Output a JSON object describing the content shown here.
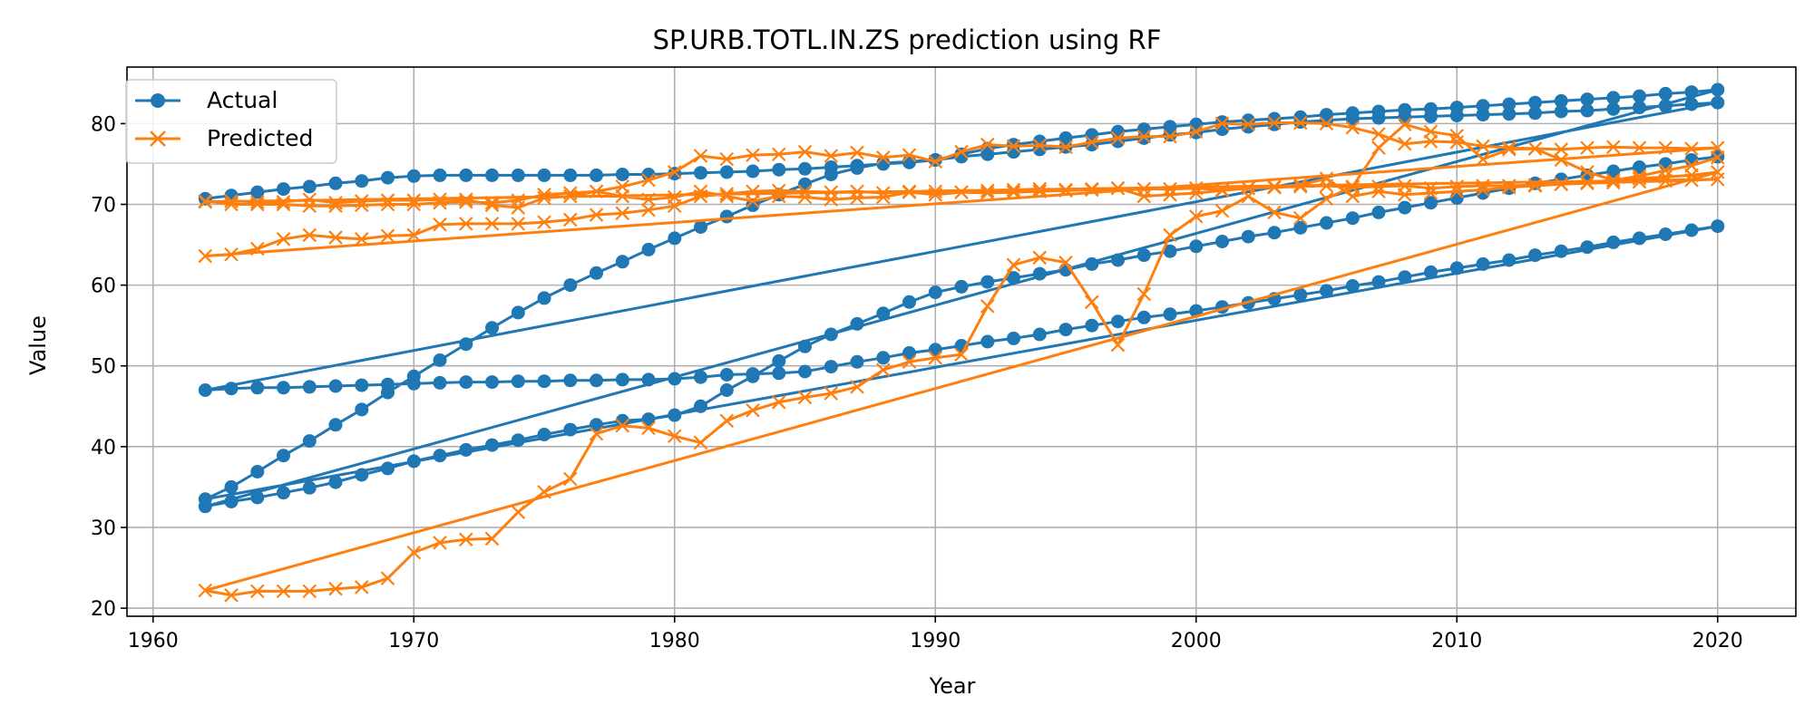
{
  "chart_data": {
    "type": "line",
    "title": "SP.URB.TOTL.IN.ZS prediction using RF",
    "xlabel": "Year",
    "ylabel": "Value",
    "xlim": [
      1959,
      2023
    ],
    "ylim": [
      19,
      87
    ],
    "xticks": [
      1960,
      1970,
      1980,
      1990,
      2000,
      2010,
      2020
    ],
    "yticks": [
      20,
      30,
      40,
      50,
      60,
      70,
      80
    ],
    "grid": true,
    "legend_position": "top-left",
    "colors": {
      "actual": "#1f77b4",
      "predicted": "#ff7f0e"
    },
    "x": [
      1962,
      1963,
      1964,
      1965,
      1966,
      1967,
      1968,
      1969,
      1970,
      1971,
      1972,
      1973,
      1974,
      1975,
      1976,
      1977,
      1978,
      1979,
      1980,
      1981,
      1982,
      1983,
      1984,
      1985,
      1986,
      1987,
      1988,
      1989,
      1990,
      1991,
      1992,
      1993,
      1994,
      1995,
      1996,
      1997,
      1998,
      1999,
      2000,
      2001,
      2002,
      2003,
      2004,
      2005,
      2006,
      2007,
      2008,
      2009,
      2010,
      2011,
      2012,
      2013,
      2014,
      2015,
      2016,
      2017,
      2018,
      2019,
      2020
    ],
    "series": [
      {
        "name": "Actual",
        "role": "actual",
        "marker": "circle",
        "segments": [
          [
            70.7,
            71.1,
            71.5,
            71.9,
            72.2,
            72.6,
            72.9,
            73.3,
            73.5,
            73.6,
            73.6,
            73.6,
            73.6,
            73.6,
            73.6,
            73.6,
            73.7,
            73.7,
            73.8,
            73.9,
            74.0,
            74.1,
            74.3,
            74.4,
            74.6,
            74.8,
            75.0,
            75.2,
            75.5,
            75.9,
            76.2,
            76.5,
            76.8,
            77.1,
            77.4,
            77.8,
            78.2,
            78.6,
            78.9,
            79.3,
            79.6,
            79.9,
            80.2,
            80.4,
            80.6,
            80.7,
            80.8,
            80.9,
            81.0,
            81.1,
            81.2,
            81.3,
            81.5,
            81.6,
            81.8,
            82.0,
            82.2,
            82.4,
            82.6
          ],
          [
            47.0,
            47.2,
            47.3,
            47.3,
            47.4,
            47.5,
            47.6,
            47.7,
            47.8,
            47.9,
            48.0,
            48.0,
            48.1,
            48.1,
            48.2,
            48.2,
            48.3,
            48.3,
            48.4,
            48.6,
            48.9,
            49.0,
            49.1,
            49.3,
            49.9,
            50.5,
            51.0,
            51.6,
            52.0,
            52.5,
            53.0,
            53.4,
            53.9,
            54.5,
            55.0,
            55.5,
            56.0,
            56.4,
            56.8,
            57.3,
            57.8,
            58.3,
            58.8,
            59.3,
            59.9,
            60.4,
            61.0,
            61.6,
            62.1,
            62.6,
            63.1,
            63.7,
            64.2,
            64.7,
            65.3,
            65.8,
            66.3,
            66.8,
            67.3
          ],
          [
            33.5,
            35.0,
            36.9,
            38.9,
            40.7,
            42.7,
            44.6,
            46.7,
            48.7,
            50.7,
            52.7,
            54.7,
            56.6,
            58.4,
            60.0,
            61.5,
            62.9,
            64.4,
            65.8,
            67.2,
            68.5,
            69.9,
            71.2,
            72.5,
            73.7,
            74.5,
            75.1,
            75.3,
            75.5,
            76.2,
            76.9,
            77.4,
            77.8,
            78.2,
            78.6,
            79.0,
            79.3,
            79.6,
            79.9,
            80.2,
            80.4,
            80.6,
            80.8,
            81.1,
            81.3,
            81.5,
            81.7,
            81.8,
            82.0,
            82.2,
            82.4,
            82.6,
            82.8,
            83.0,
            83.2,
            83.4,
            83.7,
            83.9,
            84.2
          ],
          [
            32.6,
            33.2,
            33.7,
            34.3,
            34.9,
            35.6,
            36.5,
            37.3,
            38.2,
            38.9,
            39.6,
            40.2,
            40.8,
            41.5,
            42.1,
            42.7,
            43.2,
            43.4,
            43.9,
            45.0,
            47.0,
            48.7,
            50.6,
            52.4,
            53.9,
            55.2,
            56.5,
            57.9,
            59.1,
            59.8,
            60.4,
            60.9,
            61.4,
            61.9,
            62.6,
            63.1,
            63.7,
            64.2,
            64.8,
            65.4,
            66.0,
            66.5,
            67.1,
            67.7,
            68.3,
            69.0,
            69.6,
            70.2,
            70.8,
            71.4,
            72.0,
            72.6,
            73.1,
            73.6,
            74.1,
            74.6,
            75.0,
            75.5,
            75.9
          ]
        ]
      },
      {
        "name": "Predicted",
        "role": "predicted",
        "marker": "x",
        "segments": [
          [
            70.4,
            70.0,
            70.0,
            70.0,
            69.8,
            69.8,
            69.9,
            70.0,
            70.0,
            70.2,
            70.3,
            70.2,
            70.5,
            71.2,
            71.4,
            71.6,
            72.2,
            73.0,
            74.0,
            76.0,
            75.6,
            76.1,
            76.2,
            76.5,
            76.0,
            76.4,
            75.8,
            76.1,
            75.3,
            76.5,
            77.4,
            77.2,
            77.3,
            77.1,
            77.7,
            78.2,
            78.4,
            78.4,
            79.0,
            80.0,
            79.9,
            80.1,
            80.1,
            80.0,
            79.5,
            78.7,
            77.5,
            77.8,
            77.7,
            77.2,
            77.0,
            76.9,
            76.8,
            77.0,
            77.1,
            77.0,
            77.0,
            76.9,
            77.0
          ],
          [
            63.6,
            63.8,
            64.5,
            65.7,
            66.2,
            65.9,
            65.7,
            66.1,
            66.2,
            67.5,
            67.6,
            67.6,
            67.6,
            67.8,
            68.1,
            68.7,
            68.9,
            69.3,
            69.8,
            71.0,
            71.3,
            71.6,
            71.7,
            71.6,
            71.5,
            71.6,
            71.4,
            71.6,
            71.6,
            71.5,
            71.7,
            71.8,
            71.9,
            71.8,
            71.9,
            72.0,
            71.9,
            71.9,
            72.0,
            71.8,
            72.0,
            72.1,
            72.2,
            72.3,
            72.1,
            72.2,
            72.3,
            72.0,
            72.2,
            72.3,
            72.3,
            72.4,
            72.5,
            72.6,
            72.7,
            72.8,
            72.9,
            73.0,
            73.1
          ],
          [
            70.3,
            70.4,
            70.3,
            70.3,
            70.6,
            70.2,
            70.4,
            70.5,
            70.5,
            70.6,
            70.6,
            69.9,
            69.6,
            70.8,
            71.0,
            71.6,
            71.0,
            70.6,
            70.9,
            71.6,
            71.0,
            70.4,
            71.0,
            70.9,
            70.6,
            70.8,
            70.9,
            71.5,
            71.2,
            71.5,
            71.4,
            71.5,
            71.6,
            71.7,
            71.8,
            72.0,
            71.0,
            71.2,
            71.4,
            71.7,
            72.0,
            72.2,
            72.4,
            73.2,
            71.0,
            71.6,
            71.2,
            71.4,
            71.6,
            71.8,
            72.1,
            72.3,
            72.5,
            72.7,
            73.0,
            73.2,
            73.4,
            73.6,
            74.0
          ],
          [
            22.2,
            21.6,
            22.1,
            22.1,
            22.1,
            22.4,
            22.6,
            23.7,
            26.9,
            28.1,
            28.5,
            28.6,
            31.9,
            34.4,
            36.0,
            41.6,
            42.6,
            42.3,
            41.3,
            40.5,
            43.2,
            44.5,
            45.5,
            46.1,
            46.6,
            47.4,
            49.5,
            50.5,
            51.0,
            51.4,
            57.4,
            62.5,
            63.4,
            62.8,
            57.9,
            52.6,
            58.9,
            66.2,
            68.5,
            69.2,
            71.0,
            69.0,
            68.3,
            70.7,
            72.2,
            77.0,
            79.9,
            79.0,
            78.5,
            75.6,
            76.8,
            76.9,
            75.5,
            74.0,
            73.0,
            73.5,
            74.2,
            74.8,
            75.8
          ]
        ]
      }
    ]
  }
}
